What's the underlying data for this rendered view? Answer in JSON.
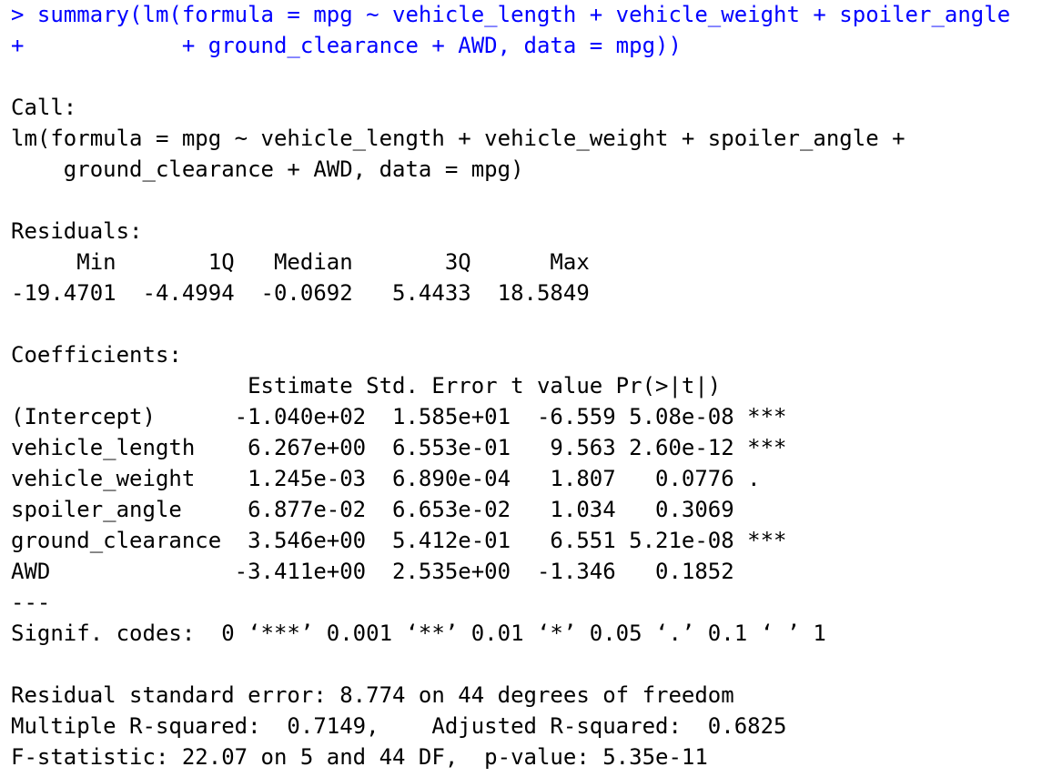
{
  "colors": {
    "background": "#ffffff",
    "input_text": "#0000ff",
    "output_text": "#000000"
  },
  "console": {
    "command_line_1": "> summary(lm(formula = mpg ~ vehicle_length + vehicle_weight + spoiler_angle",
    "command_line_2": "+            + ground_clearance + AWD, data = mpg))",
    "call_header": "Call:",
    "call_line_1": "lm(formula = mpg ~ vehicle_length + vehicle_weight + spoiler_angle +",
    "call_line_2": "    ground_clearance + AWD, data = mpg)",
    "residuals_header": "Residuals:",
    "residuals_columns": "     Min       1Q   Median       3Q      Max",
    "residuals_values": "-19.4701  -4.4994  -0.0692   5.4433  18.5849",
    "coefficients_header": "Coefficients:",
    "coef_columns": "                  Estimate Std. Error t value Pr(>|t|)",
    "coef_rows": [
      "(Intercept)      -1.040e+02  1.585e+01  -6.559 5.08e-08 ***",
      "vehicle_length    6.267e+00  6.553e-01   9.563 2.60e-12 ***",
      "vehicle_weight    1.245e-03  6.890e-04   1.807   0.0776 .",
      "spoiler_angle     6.877e-02  6.653e-02   1.034   0.3069",
      "ground_clearance  3.546e+00  5.412e-01   6.551 5.21e-08 ***",
      "AWD              -3.411e+00  2.535e+00  -1.346   0.1852"
    ],
    "separator": "---",
    "signif_codes": "Signif. codes:  0 ‘***’ 0.001 ‘**’ 0.01 ‘*’ 0.05 ‘.’ 0.1 ‘ ’ 1",
    "residual_std_error": "Residual standard error: 8.774 on 44 degrees of freedom",
    "r_squared": "Multiple R-squared:  0.7149,\tAdjusted R-squared:  0.6825",
    "f_statistic": "F-statistic: 22.07 on 5 and 44 DF,  p-value: 5.35e-11"
  }
}
